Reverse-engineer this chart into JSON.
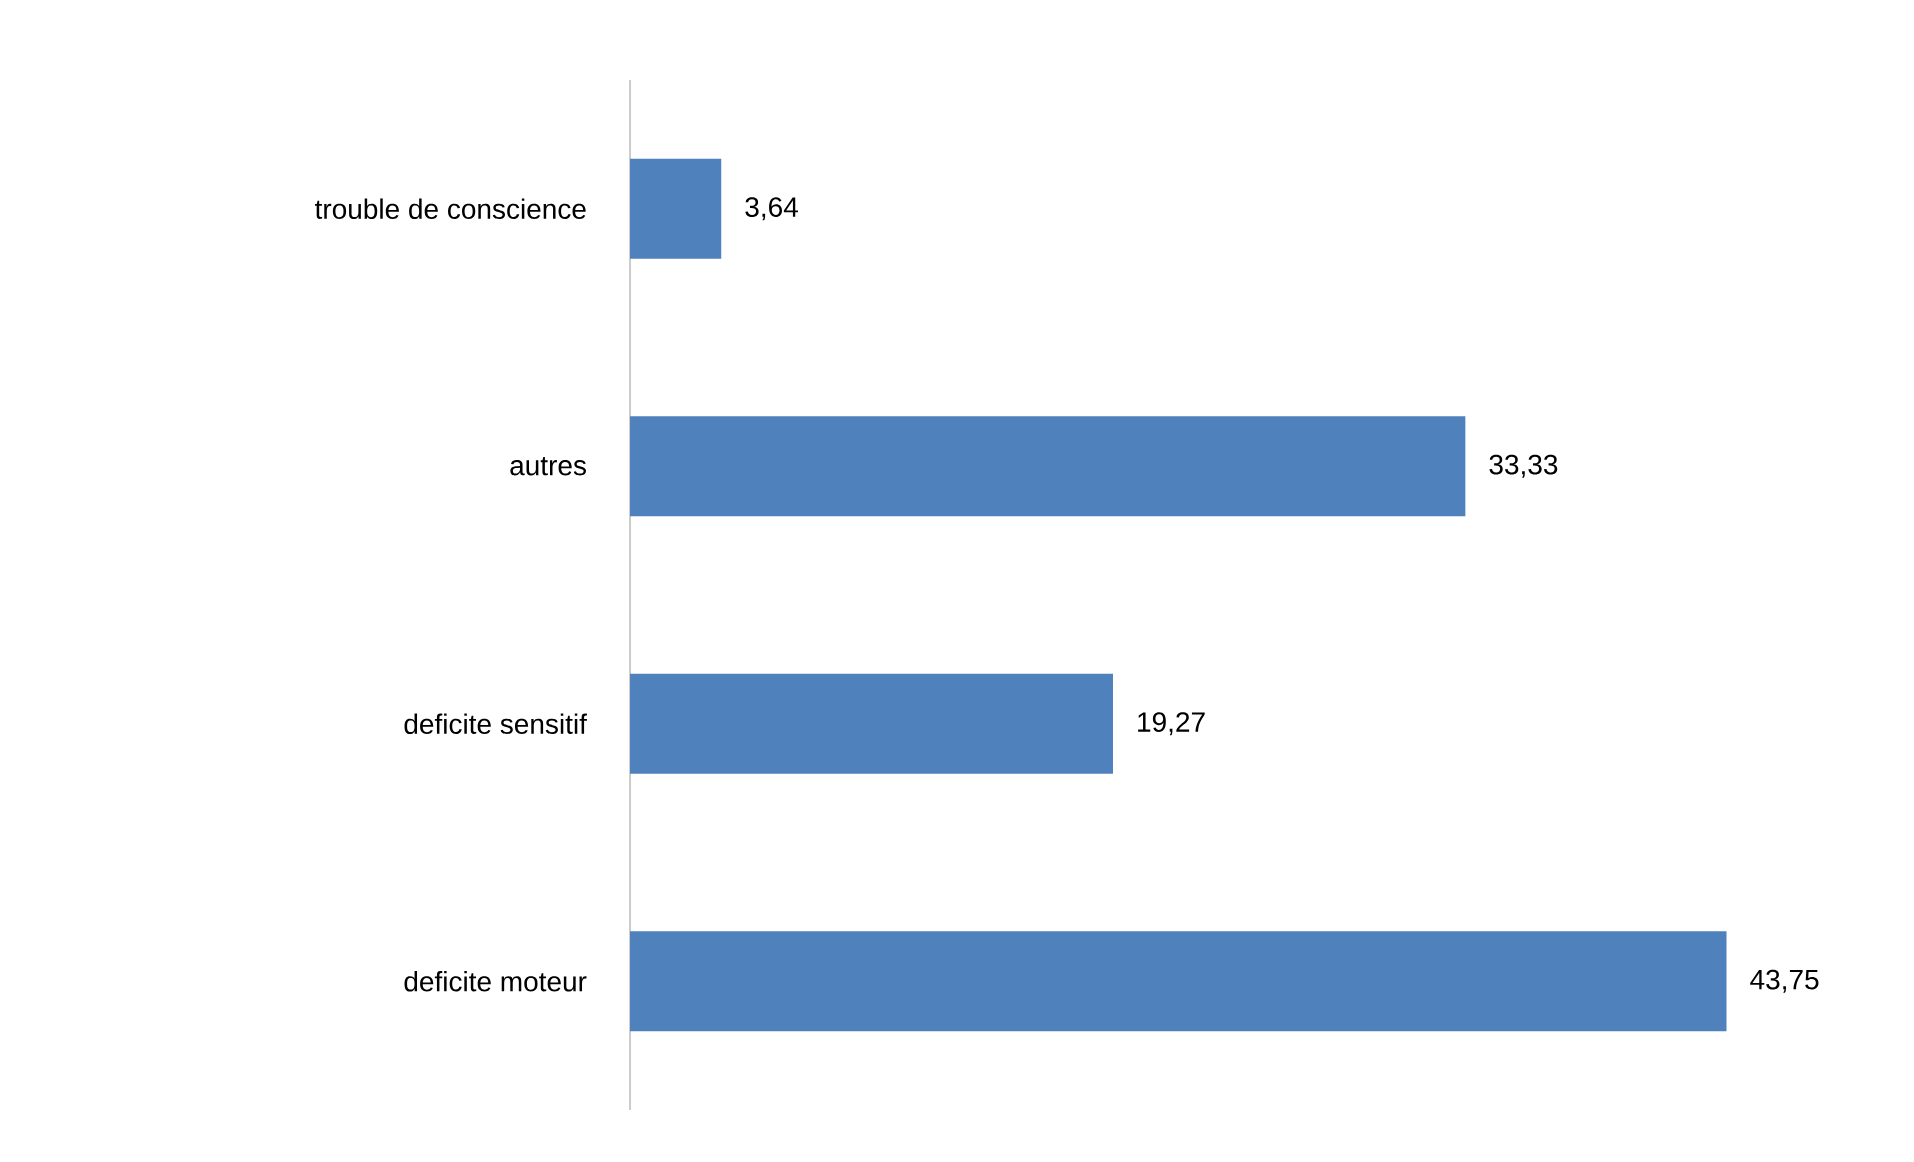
{
  "chart_data": {
    "type": "bar",
    "orientation": "horizontal",
    "categories": [
      "trouble de conscience",
      "autres",
      "deficite sensitif",
      "deficite moteur"
    ],
    "values": [
      3.64,
      33.33,
      19.27,
      43.75
    ],
    "value_labels": [
      "3,64",
      "33,33",
      "19,27",
      "43,75"
    ],
    "color": "#4f81bd"
  }
}
